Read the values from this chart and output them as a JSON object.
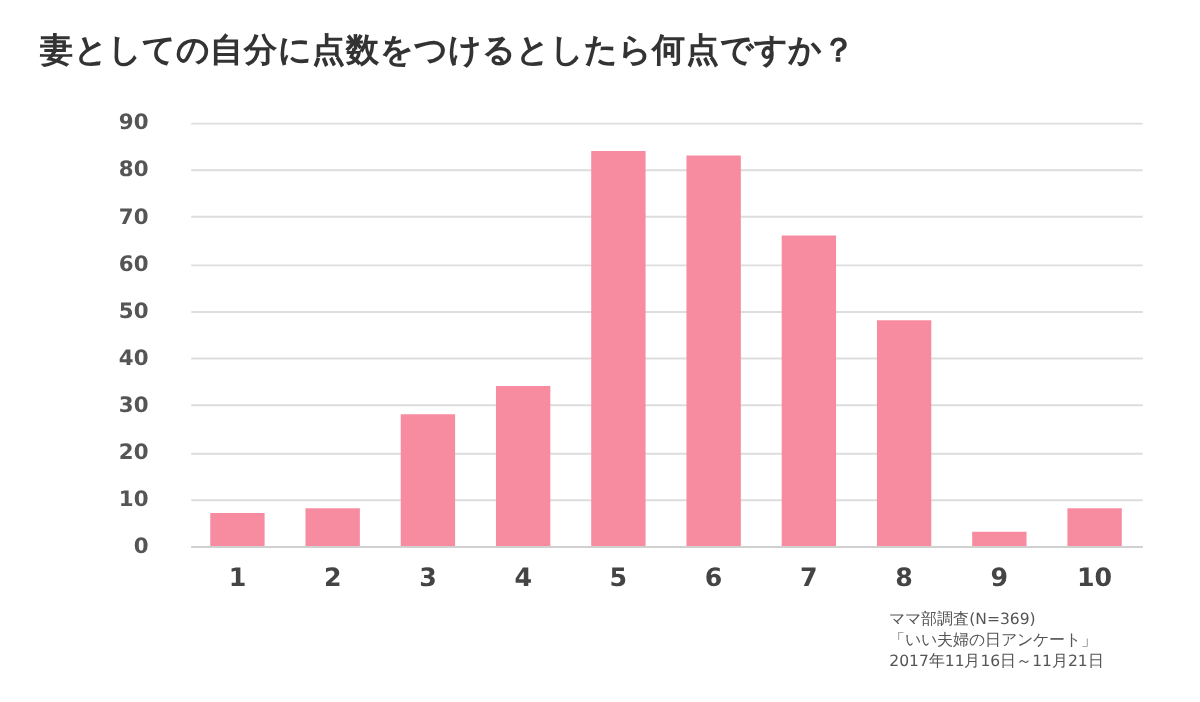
{
  "chart_data": {
    "type": "bar",
    "title": "妻としての自分に点数をつけるとしたら何点ですか？",
    "categories": [
      "1",
      "2",
      "3",
      "4",
      "5",
      "6",
      "7",
      "8",
      "9",
      "10"
    ],
    "values": [
      7,
      8,
      28,
      34,
      84,
      83,
      66,
      48,
      3,
      8
    ],
    "color": "#f78ca0",
    "ylim": [
      0,
      90
    ],
    "yticks": [
      0,
      10,
      20,
      30,
      40,
      50,
      60,
      70,
      80,
      90
    ],
    "grid": "y",
    "annotations": [
      "ママ部調査(N=369)",
      "「いい夫婦の日アンケート」",
      "2017年11月16日～11月21日"
    ]
  }
}
